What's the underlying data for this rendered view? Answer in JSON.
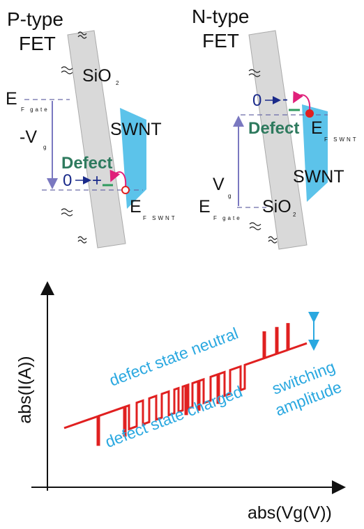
{
  "p_type": {
    "title": [
      "P-type",
      "FET"
    ],
    "sio2": {
      "text": "SiO",
      "sub": "2"
    },
    "e_fgate": {
      "text": "E",
      "sub": "F gate"
    },
    "vg": {
      "text": "-V",
      "sub": "g"
    },
    "swnt": "SWNT",
    "defect": "Defect",
    "zero": "0",
    "sign": "+",
    "e_fswnt": {
      "text": "E",
      "sub": "F SWNT"
    }
  },
  "n_type": {
    "title": [
      "N-type",
      "FET"
    ],
    "zero": "0",
    "sign": "-",
    "defect": "Defect",
    "e_fswnt": {
      "text": "E",
      "sub": "F SWNT"
    },
    "vg": {
      "text": "V",
      "sub": "g"
    },
    "swnt": "SWNT",
    "e_fgate": {
      "text": "E",
      "sub": "F gate"
    },
    "sio2": {
      "text": "SiO",
      "sub": "2"
    }
  },
  "plot": {
    "y_label": "abs(I(A))",
    "x_label": "abs(Vg(V))",
    "neutral": "defect state neutral",
    "charged": "defect state charged",
    "amplitude": [
      "switching",
      "amplitude"
    ]
  }
}
